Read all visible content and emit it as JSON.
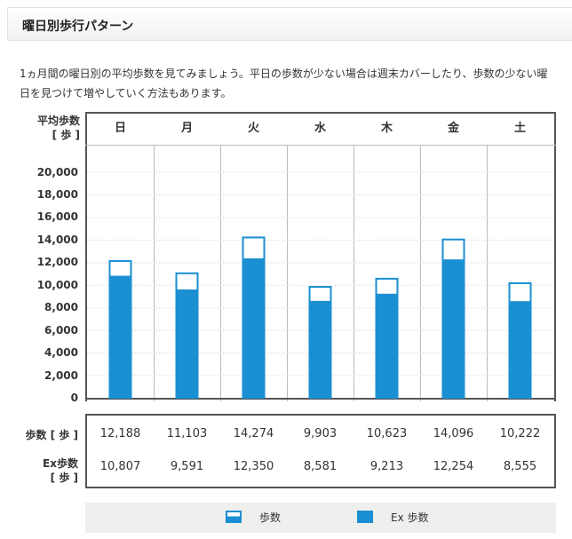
{
  "header": {
    "title": "曜日別歩行パターン"
  },
  "description": "1ヵ月間の曜日別の平均歩数を見てみましょう。平日の歩数が少ない場合は週末カバーしたり、歩数の少ない曜日を見つけて増やしていく方法もあります。",
  "colors": {
    "bar": "#1a8fd1",
    "bar_border": "#1a8fd1",
    "grid": "#cfcfcf",
    "frame": "#555555"
  },
  "chart_data": {
    "type": "bar",
    "ylabel_line1": "平均歩数",
    "ylabel_line2": "[ 歩 ]",
    "categories": [
      "日",
      "月",
      "火",
      "水",
      "木",
      "金",
      "土"
    ],
    "ylim": [
      0,
      20000
    ],
    "yticks": [
      "20,000",
      "18,000",
      "16,000",
      "14,000",
      "12,000",
      "10,000",
      "8,000",
      "6,000",
      "4,000",
      "2,000",
      "0"
    ],
    "series": [
      {
        "name": "歩数",
        "values": [
          12188,
          11103,
          14274,
          9903,
          10623,
          14096,
          10222
        ]
      },
      {
        "name": "Ex歩数",
        "values": [
          10807,
          9591,
          12350,
          8581,
          9213,
          12254,
          8555
        ]
      }
    ]
  },
  "table": {
    "row1_label": "歩数 [ 歩 ]",
    "row2_label_line1": "Ex歩数",
    "row2_label_line2": "[ 歩 ]",
    "steps": [
      "12,188",
      "11,103",
      "14,274",
      "9,903",
      "10,623",
      "14,096",
      "10,222"
    ],
    "ex_steps": [
      "10,807",
      "9,591",
      "12,350",
      "8,581",
      "9,213",
      "12,254",
      "8,555"
    ]
  },
  "legend": {
    "steps_label": "歩数",
    "ex_label": "Ex 歩数"
  }
}
